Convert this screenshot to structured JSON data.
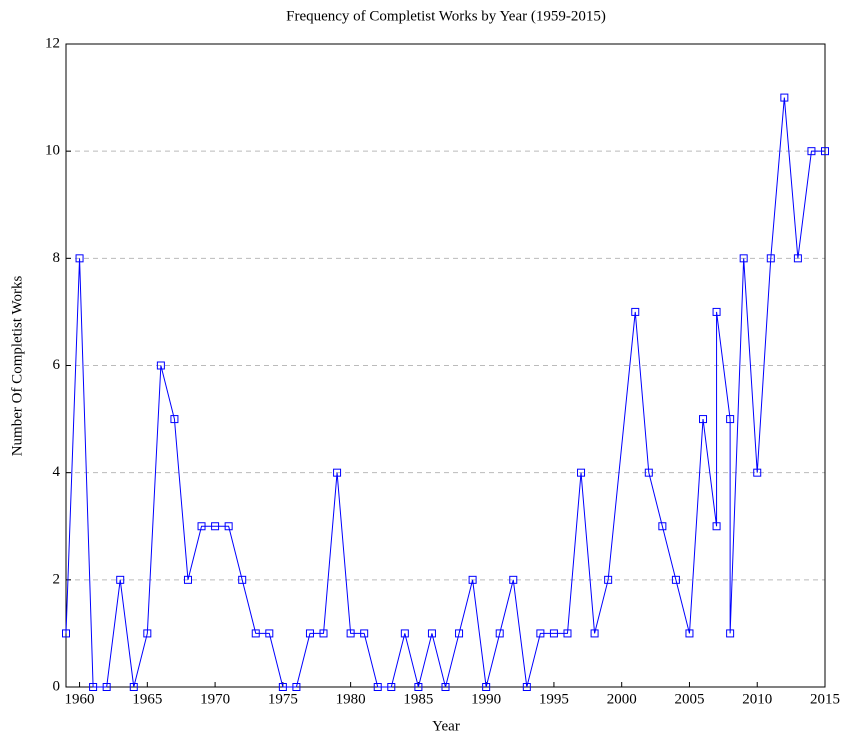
{
  "chart_data": {
    "type": "line",
    "title": "Frequency of Completist Works by Year (1959-2015)",
    "xlabel": "Year",
    "ylabel": "Number Of Completist Works",
    "series": [
      {
        "name": "Completist Works",
        "color": "#0000ff",
        "x": [
          1959,
          1960,
          1961,
          1962,
          1963,
          1964,
          1965,
          1966,
          1967,
          1968,
          1969,
          1970,
          1971,
          1972,
          1973,
          1974,
          1975,
          1976,
          1977,
          1978,
          1979,
          1980,
          1981,
          1982,
          1983,
          1984,
          1985,
          1986,
          1987,
          1988,
          1989,
          1990,
          1991,
          1992,
          1993,
          1994,
          1995,
          1996,
          1997,
          1998,
          1999,
          2001,
          2002,
          2003,
          2004,
          2005,
          2006,
          2007,
          2007,
          2008,
          2008,
          2009,
          2010,
          2011,
          2012,
          2013,
          2014,
          2015
        ],
        "values": [
          1,
          8,
          0,
          0,
          2,
          0,
          1,
          6,
          5,
          2,
          3,
          3,
          3,
          2,
          1,
          1,
          0,
          0,
          1,
          1,
          4,
          1,
          1,
          0,
          0,
          1,
          0,
          1,
          0,
          1,
          2,
          0,
          1,
          2,
          0,
          1,
          1,
          1,
          4,
          1,
          2,
          7,
          4,
          3,
          2,
          1,
          5,
          3,
          7,
          5,
          1,
          8,
          4,
          8,
          11,
          8,
          10,
          10
        ]
      }
    ],
    "xlim": [
      1959,
      2015
    ],
    "xticks": [
      1960,
      1965,
      1970,
      1975,
      1980,
      1985,
      1990,
      1995,
      2000,
      2005,
      2010,
      2015
    ],
    "ylim": [
      0,
      12
    ],
    "yticks": [
      0,
      2,
      4,
      6,
      8,
      10,
      12
    ],
    "grid": true
  }
}
